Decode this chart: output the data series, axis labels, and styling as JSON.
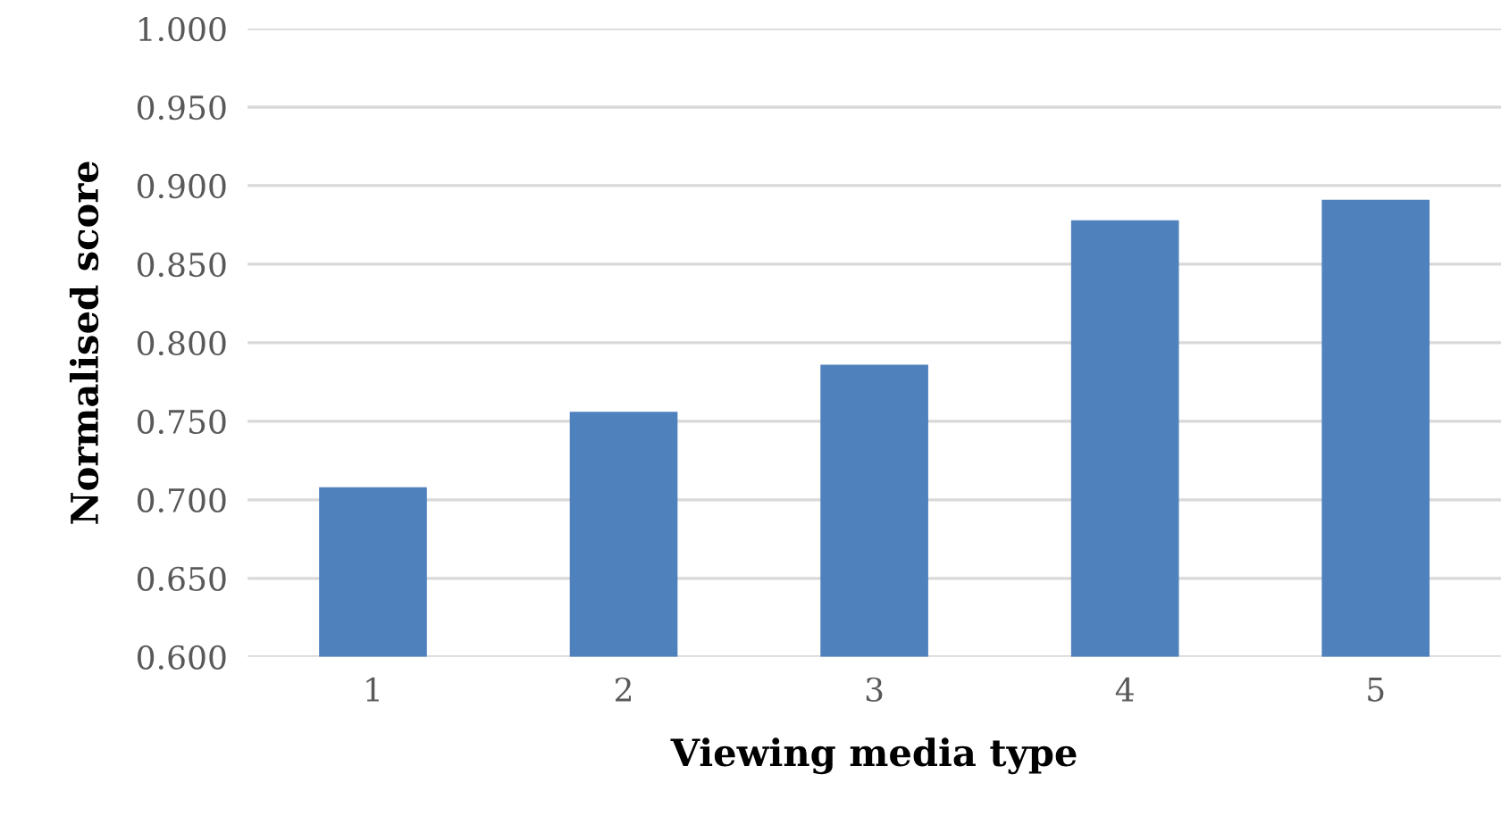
{
  "chart_data": {
    "type": "bar",
    "xlabel": "Viewing media type",
    "ylabel": "Normalised score",
    "categories": [
      "1",
      "2",
      "3",
      "4",
      "5"
    ],
    "values": [
      0.708,
      0.756,
      0.786,
      0.878,
      0.891
    ],
    "color": "#4f81bd",
    "ylim": [
      0.6,
      1.0
    ],
    "yticks": [
      {
        "value": 0.6,
        "label": "0.600"
      },
      {
        "value": 0.65,
        "label": "0.650"
      },
      {
        "value": 0.7,
        "label": "0.700"
      },
      {
        "value": 0.75,
        "label": "0.750"
      },
      {
        "value": 0.8,
        "label": "0.800"
      },
      {
        "value": 0.85,
        "label": "0.850"
      },
      {
        "value": 0.9,
        "label": "0.900"
      },
      {
        "value": 0.95,
        "label": "0.950"
      },
      {
        "value": 1.0,
        "label": "1.000"
      }
    ],
    "grid": "y",
    "legend": false
  }
}
